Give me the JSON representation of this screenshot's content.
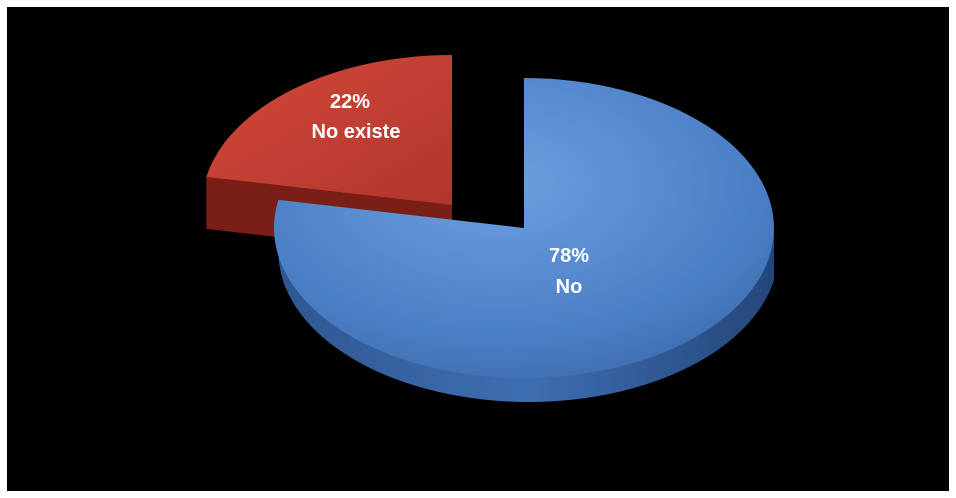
{
  "chart_data": {
    "type": "pie",
    "three_d": true,
    "exploded": true,
    "background": "#000000",
    "legend": "none",
    "slices": [
      {
        "category": "No existe",
        "percent": 22,
        "percent_label": "22%",
        "color": "#c0392b"
      },
      {
        "category": "No",
        "percent": 78,
        "percent_label": "78%",
        "color": "#4f81bd"
      }
    ]
  }
}
